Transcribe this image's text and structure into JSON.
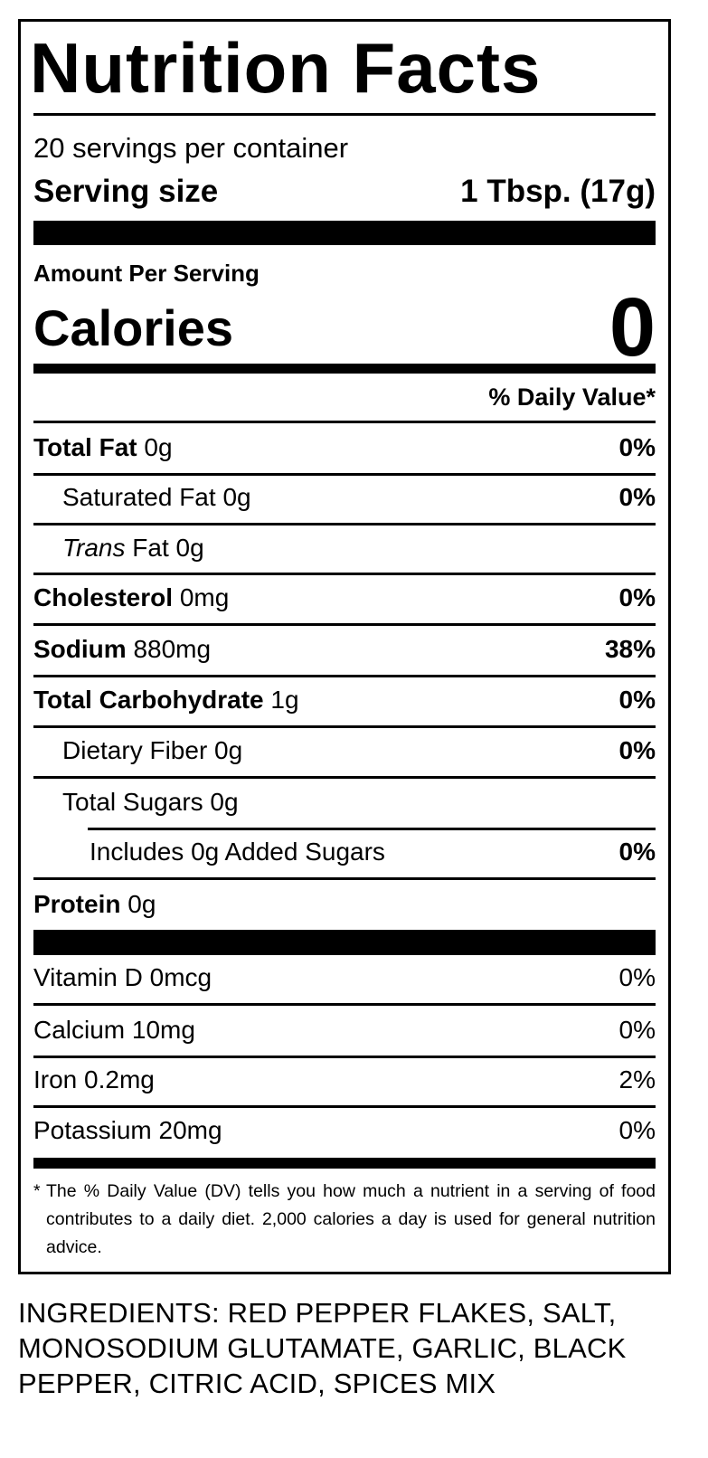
{
  "label": {
    "title": "Nutrition Facts",
    "servings_per_container": "20 servings per container",
    "serving_size_label": "Serving size",
    "serving_size_value": "1 Tbsp. (17g)",
    "amount_per_serving": "Amount Per Serving",
    "calories_label": "Calories",
    "calories_value": "0",
    "daily_value_header": "% Daily Value*",
    "nutrients": [
      {
        "name": "Total Fat",
        "amount": "0g",
        "dv": "0%"
      },
      {
        "name": "Saturated Fat",
        "amount": "0g",
        "dv": "0%"
      },
      {
        "name_italic": "Trans",
        "name": "Fat",
        "amount": "0g",
        "dv": ""
      },
      {
        "name": "Cholesterol",
        "amount": "0mg",
        "dv": "0%"
      },
      {
        "name": "Sodium",
        "amount": "880mg",
        "dv": "38%"
      },
      {
        "name": "Total Carbohydrate",
        "amount": "1g",
        "dv": "0%"
      },
      {
        "name": "Dietary Fiber",
        "amount": "0g",
        "dv": "0%"
      },
      {
        "name": "Total Sugars",
        "amount": "0g",
        "dv": ""
      },
      {
        "name": "Includes 0g Added Sugars",
        "amount": "",
        "dv": "0%"
      },
      {
        "name": "Protein",
        "amount": "0g",
        "dv": ""
      }
    ],
    "vitamins": [
      {
        "text": "Vitamin D 0mcg",
        "dv": "0%"
      },
      {
        "text": "Calcium 10mg",
        "dv": "0%"
      },
      {
        "text": "Iron 0.2mg",
        "dv": "2%"
      },
      {
        "text": "Potassium 20mg",
        "dv": "0%"
      }
    ],
    "footnote_star": "*",
    "footnote": "The % Daily Value (DV) tells you how much a nutrient in a serving of food contributes to a daily diet. 2,000 calories a day is used for general nutrition advice."
  },
  "ingredients": "INGREDIENTS: RED PEPPER FLAKES, SALT, MONOSODIUM GLUTAMATE, GARLIC, BLACK PEPPER, CITRIC ACID, SPICES MIX"
}
